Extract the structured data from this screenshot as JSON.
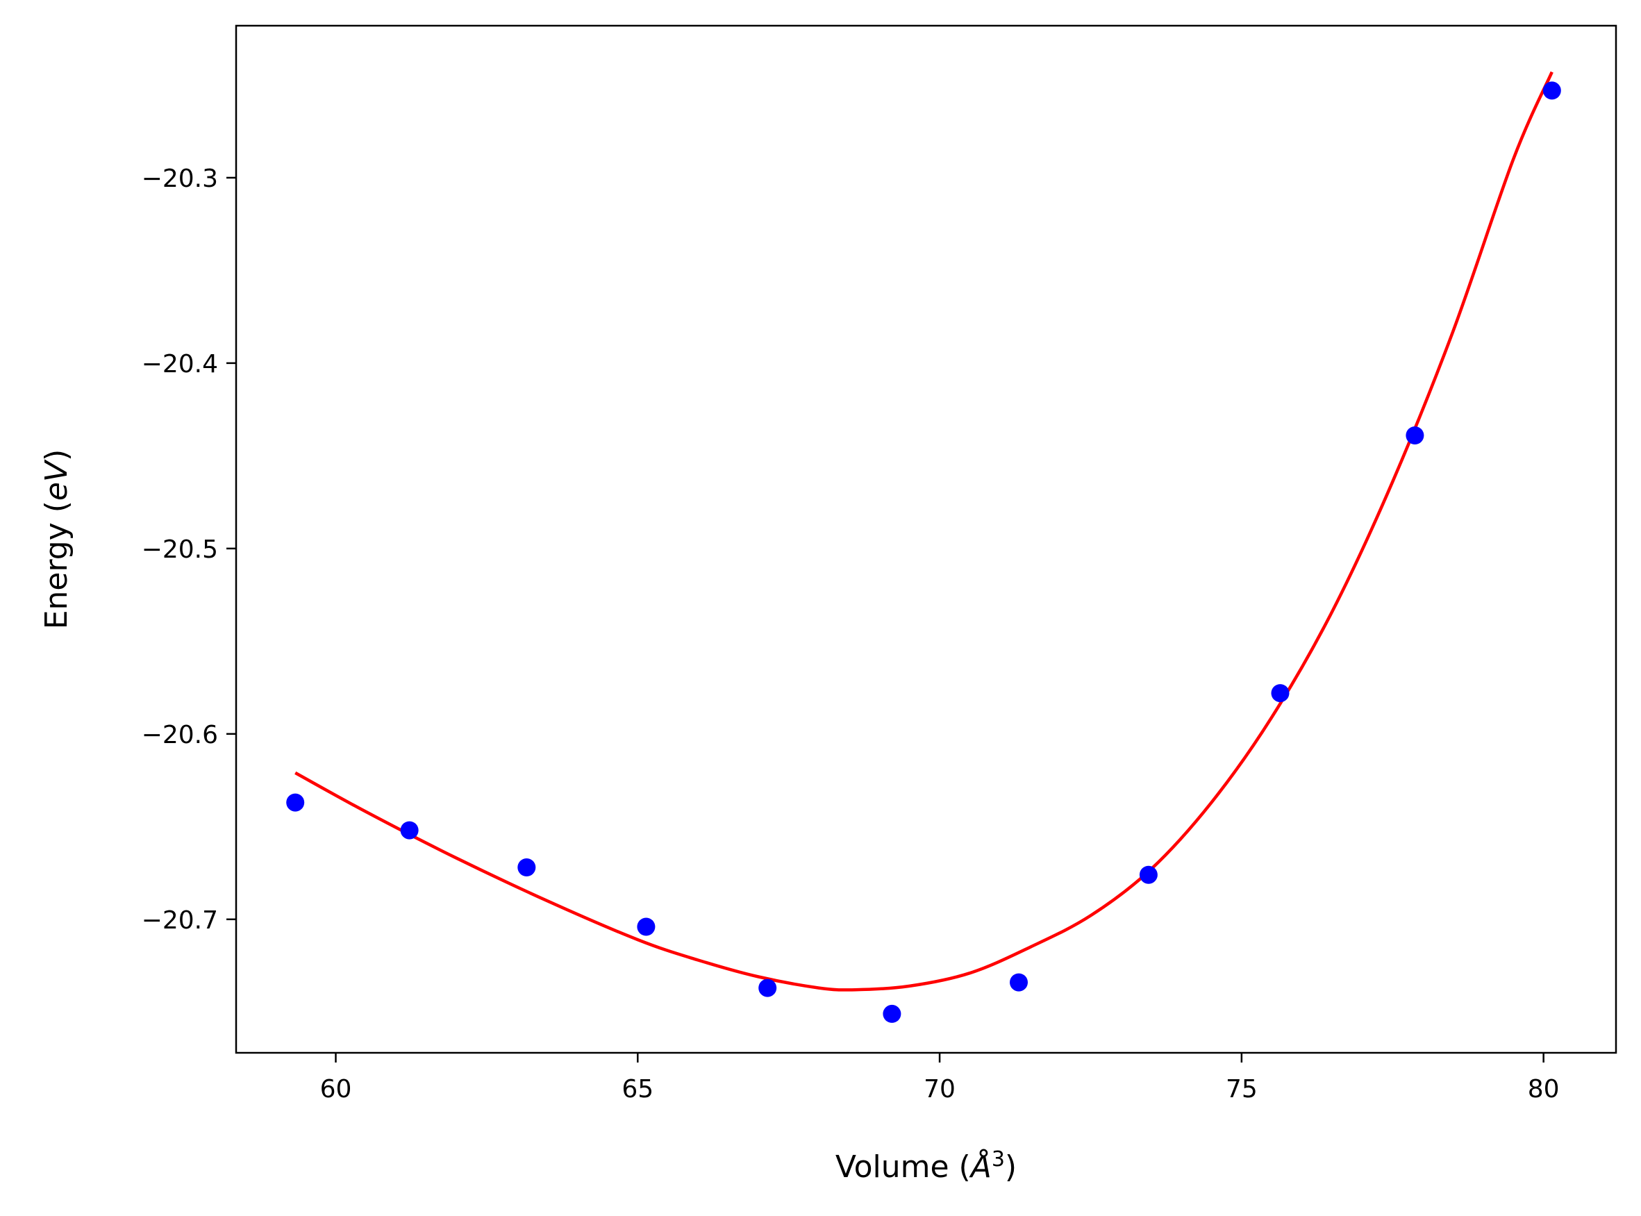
{
  "chart_data": {
    "type": "scatter",
    "title": "",
    "xlabel": {
      "main": "Volume (",
      "italic": "Å",
      "sup": "3",
      "end": ")"
    },
    "ylabel": {
      "main": "Energy (",
      "italic": "eV",
      "end": ")"
    },
    "xlim": [
      58.35,
      81.2
    ],
    "ylim": [
      -20.772,
      -20.218
    ],
    "xticks": [
      60,
      65,
      70,
      75,
      80
    ],
    "xtick_labels": [
      "60",
      "65",
      "70",
      "75",
      "80"
    ],
    "yticks": [
      -20.3,
      -20.4,
      -20.5,
      -20.6,
      -20.7
    ],
    "ytick_labels": [
      "−20.3",
      "−20.4",
      "−20.5",
      "−20.6",
      "−20.7"
    ],
    "grid": false,
    "series": [
      {
        "kind": "points",
        "color": "#0000ff",
        "x": [
          59.33,
          61.22,
          63.16,
          65.14,
          67.15,
          69.21,
          71.31,
          73.46,
          75.64,
          77.87,
          80.14
        ],
        "y": [
          -20.637,
          -20.652,
          -20.672,
          -20.704,
          -20.737,
          -20.751,
          -20.734,
          -20.676,
          -20.578,
          -20.439,
          -20.253
        ]
      },
      {
        "kind": "line",
        "color": "#ff0000",
        "x": [
          59.33,
          60.5,
          62.0,
          63.5,
          65.0,
          66.0,
          67.0,
          68.0,
          68.6,
          69.5,
          70.5,
          71.5,
          72.5,
          73.5,
          74.5,
          75.5,
          76.5,
          77.5,
          78.5,
          79.5,
          80.14
        ],
        "y": [
          -20.621,
          -20.642,
          -20.667,
          -20.69,
          -20.711,
          -20.722,
          -20.731,
          -20.737,
          -20.738,
          -20.736,
          -20.729,
          -20.715,
          -20.698,
          -20.673,
          -20.637,
          -20.591,
          -20.534,
          -20.464,
          -20.383,
          -20.29,
          -20.243
        ]
      }
    ]
  }
}
